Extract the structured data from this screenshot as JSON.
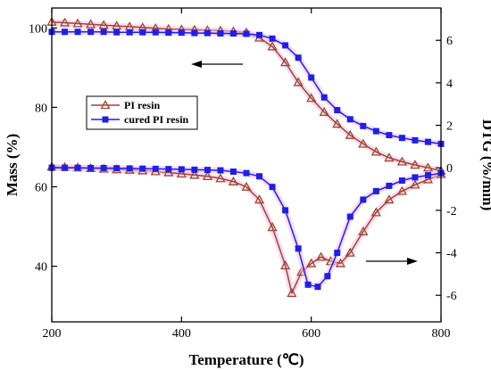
{
  "chart_data": {
    "type": "line",
    "xlabel": "Temperature (℃)",
    "ylabel_left": "Mass (%)",
    "ylabel_right": "DTG (%/min)",
    "xlim": [
      200,
      800
    ],
    "ylim_left": [
      26,
      105
    ],
    "ylim_right": [
      -7.25,
      7.52
    ],
    "x_ticks": [
      200,
      400,
      600,
      800
    ],
    "y_left_ticks": [
      40,
      60,
      80,
      100
    ],
    "y_right_ticks": [
      -6,
      -4,
      -2,
      0,
      2,
      4,
      6
    ],
    "grid": false,
    "legend_position": "upper-left",
    "series": [
      {
        "name": "PI resin",
        "axis": "left",
        "color": "#a0442a",
        "marker": "triangle",
        "x": [
          200,
          220,
          240,
          260,
          280,
          300,
          320,
          340,
          360,
          380,
          400,
          420,
          440,
          460,
          480,
          500,
          520,
          540,
          560,
          580,
          600,
          620,
          640,
          660,
          680,
          700,
          720,
          740,
          760,
          780,
          800
        ],
        "values": [
          101.5,
          101.3,
          101.1,
          100.9,
          100.7,
          100.5,
          100.3,
          100.1,
          99.9,
          99.7,
          99.6,
          99.5,
          99.4,
          99.3,
          99.1,
          98.8,
          97.5,
          95.3,
          91.3,
          86.3,
          82.3,
          78.8,
          75.8,
          73.0,
          70.8,
          68.8,
          67.3,
          66.3,
          65.5,
          64.8,
          64.0
        ]
      },
      {
        "name": "cured PI resin",
        "axis": "left",
        "color": "#1f1fe6",
        "marker": "square",
        "x": [
          200,
          220,
          240,
          260,
          280,
          300,
          320,
          340,
          360,
          380,
          400,
          420,
          440,
          460,
          480,
          500,
          520,
          540,
          560,
          580,
          600,
          620,
          640,
          660,
          680,
          700,
          720,
          740,
          760,
          780,
          800
        ],
        "values": [
          99.0,
          99.0,
          99.0,
          99.0,
          99.0,
          98.9,
          98.9,
          98.9,
          98.9,
          98.8,
          98.8,
          98.7,
          98.7,
          98.6,
          98.6,
          98.5,
          98.2,
          97.3,
          95.6,
          92.5,
          87.5,
          82.5,
          79.3,
          77.0,
          75.3,
          74.0,
          73.0,
          72.3,
          71.7,
          71.3,
          70.8
        ]
      },
      {
        "name": "",
        "axis": "right",
        "color": "#a0442a",
        "marker": "triangle",
        "x": [
          200,
          220,
          240,
          260,
          280,
          300,
          320,
          340,
          360,
          380,
          400,
          420,
          440,
          460,
          480,
          500,
          520,
          540,
          560,
          570,
          585,
          600,
          615,
          630,
          645,
          660,
          680,
          700,
          720,
          740,
          760,
          780,
          800
        ],
        "values": [
          0.05,
          0.03,
          0.01,
          -0.02,
          -0.05,
          -0.08,
          -0.1,
          -0.13,
          -0.17,
          -0.22,
          -0.28,
          -0.34,
          -0.4,
          -0.5,
          -0.65,
          -0.9,
          -1.5,
          -2.8,
          -4.6,
          -5.9,
          -4.9,
          -4.5,
          -4.2,
          -4.4,
          -4.5,
          -4.0,
          -3.0,
          -2.1,
          -1.5,
          -1.1,
          -0.8,
          -0.55,
          -0.3
        ]
      },
      {
        "name": "",
        "axis": "right",
        "color": "#1f1fe6",
        "marker": "square",
        "x": [
          200,
          220,
          240,
          260,
          280,
          300,
          320,
          340,
          360,
          380,
          400,
          420,
          440,
          460,
          480,
          500,
          520,
          540,
          560,
          580,
          595,
          610,
          625,
          640,
          660,
          680,
          700,
          720,
          740,
          760,
          780,
          800
        ],
        "values": [
          0.0,
          0.0,
          0.0,
          -0.01,
          -0.01,
          -0.02,
          -0.03,
          -0.04,
          -0.05,
          -0.06,
          -0.07,
          -0.09,
          -0.1,
          -0.12,
          -0.18,
          -0.25,
          -0.4,
          -0.9,
          -2.0,
          -3.8,
          -5.5,
          -5.6,
          -5.1,
          -4.0,
          -2.3,
          -1.5,
          -1.1,
          -0.85,
          -0.6,
          -0.45,
          -0.35,
          -0.25
        ]
      }
    ]
  }
}
